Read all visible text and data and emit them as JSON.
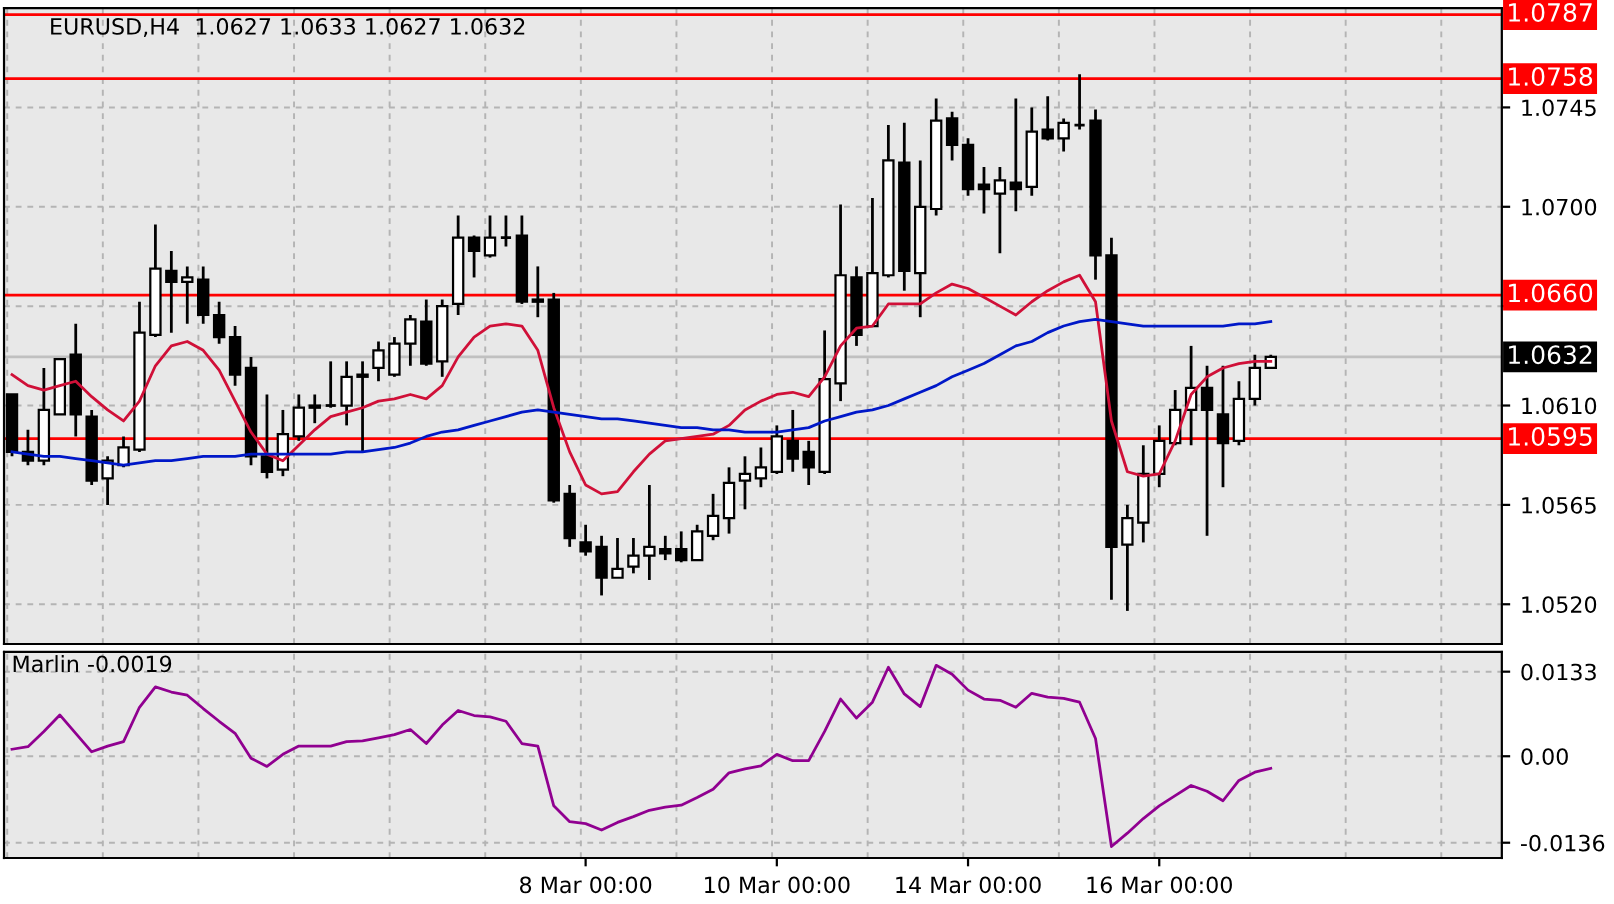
{
  "chart_data": [
    {
      "type": "candlestick",
      "title": "EURUSD,H4  1.0627 1.0633 1.0627 1.0632",
      "categories": [
        null,
        null,
        null,
        null,
        null,
        null,
        null,
        null,
        null,
        null,
        null,
        null,
        null,
        null,
        null,
        null,
        null,
        null,
        null,
        null,
        null,
        null,
        null,
        null,
        null,
        null,
        null,
        null,
        null,
        null,
        null,
        null,
        null,
        null,
        null,
        null,
        null,
        null,
        null,
        null,
        null,
        null,
        null,
        null,
        null,
        null,
        null,
        null,
        null,
        null,
        null,
        null,
        null,
        null,
        null,
        null,
        null,
        null,
        null,
        null,
        null,
        null,
        null,
        null,
        null,
        null,
        null,
        null,
        null,
        null,
        null,
        null,
        null,
        null,
        null,
        null,
        null,
        null,
        null,
        null
      ],
      "ohlc": [
        [
          1.0615,
          1.0615,
          1.0587,
          1.0589
        ],
        [
          1.0589,
          1.0599,
          1.0583,
          1.0585
        ],
        [
          1.0585,
          1.0627,
          1.0583,
          1.0608
        ],
        [
          1.0606,
          1.0631,
          1.0606,
          1.0631
        ],
        [
          1.0633,
          1.0647,
          1.0596,
          1.0606
        ],
        [
          1.0605,
          1.0608,
          1.0574,
          1.0576
        ],
        [
          1.0577,
          1.0587,
          1.0565,
          1.0585
        ],
        [
          1.0583,
          1.0596,
          1.0582,
          1.0591
        ],
        [
          1.059,
          1.0657,
          1.0589,
          1.0643
        ],
        [
          1.0642,
          1.0692,
          1.0641,
          1.0672
        ],
        [
          1.0671,
          1.068,
          1.0643,
          1.0666
        ],
        [
          1.0666,
          1.0673,
          1.0647,
          1.0668
        ],
        [
          1.0667,
          1.0673,
          1.0647,
          1.0651
        ],
        [
          1.0651,
          1.0657,
          1.0638,
          1.0641
        ],
        [
          1.0641,
          1.0646,
          1.0619,
          1.0624
        ],
        [
          1.0627,
          1.0632,
          1.0583,
          1.0587
        ],
        [
          1.0587,
          1.0615,
          1.0577,
          1.058
        ],
        [
          1.0581,
          1.0608,
          1.0578,
          1.0597
        ],
        [
          1.0596,
          1.0615,
          1.0594,
          1.0609
        ],
        [
          1.0609,
          1.0615,
          1.0602,
          1.061
        ],
        [
          1.061,
          1.063,
          1.0609,
          1.061
        ],
        [
          1.061,
          1.063,
          1.0601,
          1.0623
        ],
        [
          1.0624,
          1.063,
          1.0589,
          1.0623
        ],
        [
          1.0627,
          1.0639,
          1.0621,
          1.0635
        ],
        [
          1.0624,
          1.0641,
          1.0623,
          1.0638
        ],
        [
          1.0638,
          1.0651,
          1.0628,
          1.0649
        ],
        [
          1.0648,
          1.0658,
          1.0628,
          1.0629
        ],
        [
          1.063,
          1.0658,
          1.0623,
          1.0655
        ],
        [
          1.0656,
          1.0696,
          1.0651,
          1.0686
        ],
        [
          1.0686,
          1.0687,
          1.0668,
          1.068
        ],
        [
          1.0678,
          1.0696,
          1.0677,
          1.0686
        ],
        [
          1.0686,
          1.0696,
          1.0682,
          1.0686
        ],
        [
          1.0687,
          1.0696,
          1.0656,
          1.0657
        ],
        [
          1.0658,
          1.0673,
          1.065,
          1.0657
        ],
        [
          1.0658,
          1.0661,
          1.0566,
          1.0567
        ],
        [
          1.057,
          1.0574,
          1.0546,
          1.055
        ],
        [
          1.0548,
          1.0556,
          1.0542,
          1.0544
        ],
        [
          1.0546,
          1.0551,
          1.0524,
          1.0532
        ],
        [
          1.0532,
          1.055,
          1.0532,
          1.0536
        ],
        [
          1.0537,
          1.055,
          1.0534,
          1.0542
        ],
        [
          1.0542,
          1.0574,
          1.0531,
          1.0546
        ],
        [
          1.0545,
          1.0551,
          1.054,
          1.0543
        ],
        [
          1.0545,
          1.0553,
          1.0539,
          1.054
        ],
        [
          1.054,
          1.0556,
          1.054,
          1.0553
        ],
        [
          1.0551,
          1.057,
          1.0549,
          1.056
        ],
        [
          1.0559,
          1.0582,
          1.0552,
          1.0575
        ],
        [
          1.0576,
          1.0587,
          1.0563,
          1.0579
        ],
        [
          1.0577,
          1.0591,
          1.0573,
          1.0582
        ],
        [
          1.058,
          1.0601,
          1.0579,
          1.0596
        ],
        [
          1.0594,
          1.0608,
          1.058,
          1.0586
        ],
        [
          1.0589,
          1.0594,
          1.0574,
          1.0582
        ],
        [
          1.058,
          1.0644,
          1.0579,
          1.0622
        ],
        [
          1.062,
          1.0701,
          1.0612,
          1.0669
        ],
        [
          1.0668,
          1.0673,
          1.0637,
          1.0642
        ],
        [
          1.0646,
          1.0704,
          1.0646,
          1.067
        ],
        [
          1.0669,
          1.0737,
          1.0668,
          1.0721
        ],
        [
          1.072,
          1.0738,
          1.0662,
          1.0671
        ],
        [
          1.067,
          1.0721,
          1.065,
          1.07
        ],
        [
          1.0699,
          1.0749,
          1.0696,
          1.0739
        ],
        [
          1.074,
          1.0743,
          1.0721,
          1.0728
        ],
        [
          1.0728,
          1.0731,
          1.0705,
          1.0708
        ],
        [
          1.071,
          1.0718,
          1.0697,
          1.0708
        ],
        [
          1.0706,
          1.0718,
          1.0679,
          1.0712
        ],
        [
          1.0711,
          1.0749,
          1.0698,
          1.0708
        ],
        [
          1.0709,
          1.0745,
          1.0705,
          1.0734
        ],
        [
          1.0735,
          1.075,
          1.073,
          1.0731
        ],
        [
          1.0731,
          1.074,
          1.0725,
          1.0738
        ],
        [
          1.0737,
          1.076,
          1.0735,
          1.0737
        ],
        [
          1.0739,
          1.0744,
          1.0667,
          1.0678
        ],
        [
          1.0678,
          1.0686,
          1.0522,
          1.0546
        ],
        [
          1.0547,
          1.0565,
          1.0517,
          1.0559
        ],
        [
          1.0557,
          1.0592,
          1.0548,
          1.0579
        ],
        [
          1.0579,
          1.0601,
          1.0573,
          1.0594
        ],
        [
          1.0593,
          1.0617,
          1.0592,
          1.0608
        ],
        [
          1.0608,
          1.0637,
          1.0592,
          1.0618
        ],
        [
          1.0618,
          1.0628,
          1.0551,
          1.0608
        ],
        [
          1.0606,
          1.0628,
          1.0573,
          1.0593
        ],
        [
          1.0594,
          1.0621,
          1.0592,
          1.0613
        ],
        [
          1.0613,
          1.0633,
          1.061,
          1.0627
        ],
        [
          1.0627,
          1.0633,
          1.0627,
          1.0632
        ]
      ],
      "series": [
        {
          "type": "line",
          "color": "#d01038",
          "values": [
            1.0624,
            1.0619,
            1.0617,
            1.0619,
            1.0621,
            1.0614,
            1.0608,
            1.0603,
            1.0612,
            1.0628,
            1.0637,
            1.0639,
            1.0635,
            1.0626,
            1.0612,
            1.0598,
            1.0588,
            1.0585,
            1.0592,
            1.0599,
            1.0605,
            1.0607,
            1.0609,
            1.0612,
            1.0613,
            1.0615,
            1.0613,
            1.0619,
            1.0632,
            1.0641,
            1.0646,
            1.0647,
            1.0646,
            1.0635,
            1.0609,
            1.0589,
            1.0574,
            1.057,
            1.0571,
            1.058,
            1.0588,
            1.0594,
            1.0595,
            1.0596,
            1.0597,
            1.0601,
            1.0608,
            1.0612,
            1.0615,
            1.0616,
            1.0614,
            1.0623,
            1.0637,
            1.0645,
            1.0646,
            1.0656,
            1.0656,
            1.0656,
            1.0661,
            1.0665,
            1.0663,
            1.0659,
            1.0655,
            1.0651,
            1.0657,
            1.0662,
            1.0666,
            1.0669,
            1.0657,
            1.0603,
            1.058,
            1.0578,
            1.0579,
            1.0594,
            1.0615,
            1.0623,
            1.0627,
            1.0629,
            1.063,
            1.063
          ]
        },
        {
          "type": "line",
          "color": "#0018c8",
          "values": [
            1.0589,
            1.0588,
            1.0587,
            1.0587,
            1.0586,
            1.0585,
            1.0584,
            1.0583,
            1.0584,
            1.0585,
            1.0585,
            1.0586,
            1.0587,
            1.0587,
            1.0587,
            1.0588,
            1.0588,
            1.0588,
            1.0588,
            1.0588,
            1.0588,
            1.0589,
            1.0589,
            1.059,
            1.0591,
            1.0593,
            1.0596,
            1.0598,
            1.0599,
            1.0601,
            1.0603,
            1.0605,
            1.0607,
            1.0608,
            1.0607,
            1.0606,
            1.0605,
            1.0604,
            1.0604,
            1.0603,
            1.0602,
            1.0601,
            1.06,
            1.06,
            1.0599,
            1.0599,
            1.0598,
            1.0598,
            1.0598,
            1.0599,
            1.06,
            1.0603,
            1.0605,
            1.0607,
            1.0608,
            1.061,
            1.0613,
            1.0616,
            1.0619,
            1.0623,
            1.0626,
            1.0629,
            1.0633,
            1.0637,
            1.0639,
            1.0643,
            1.0646,
            1.0648,
            1.0649,
            1.0648,
            1.0647,
            1.0646,
            1.0646,
            1.0646,
            1.0646,
            1.0646,
            1.0646,
            1.0647,
            1.0647,
            1.0648
          ]
        }
      ],
      "ylim": [
        1.0502,
        1.079
      ],
      "yticks": [
        {
          "value": 1.052,
          "label": "1.0520"
        },
        1.0565,
        {
          "value": 1.061,
          "label": "1.0610"
        },
        {
          "value": 1.0655,
          "label": null
        },
        {
          "value": 1.07,
          "label": "1.0700"
        },
        1.0745
      ],
      "ref_lines": [
        {
          "axis": "y",
          "value": 1.0787,
          "label": "1.0787",
          "color": "#ff0000"
        },
        {
          "axis": "y",
          "value": 1.0758,
          "label": "1.0758",
          "color": "#ff0000"
        },
        {
          "axis": "y",
          "value": 1.066,
          "label": "1.0660",
          "color": "#ff0000"
        },
        {
          "axis": "y",
          "value": 1.0595,
          "label": "1.0595",
          "color": "#ff0000"
        },
        {
          "axis": "y",
          "value": 1.0632,
          "label": "1.0632",
          "color": "#c0c0c0"
        }
      ],
      "grid": true,
      "tick_labels": "y"
    },
    {
      "type": "line",
      "title": "Marlin -0.0019",
      "categories": [
        null,
        null,
        null,
        null,
        null,
        null,
        null,
        null,
        null,
        null,
        null,
        null,
        null,
        null,
        null,
        null,
        null,
        null,
        null,
        null,
        null,
        null,
        null,
        null,
        null,
        null,
        null,
        null,
        null,
        null,
        null,
        null,
        null,
        null,
        null,
        null,
        "8 Mar 00:00",
        null,
        null,
        null,
        null,
        null,
        null,
        null,
        null,
        null,
        null,
        null,
        "10 Mar 00:00",
        null,
        null,
        null,
        null,
        null,
        null,
        null,
        null,
        null,
        null,
        null,
        "14 Mar 00:00",
        null,
        null,
        null,
        null,
        null,
        null,
        null,
        null,
        null,
        null,
        null,
        "16 Mar 00:00",
        null,
        null,
        null,
        null,
        null,
        null,
        null
      ],
      "series": [
        {
          "color": "#900090",
          "values": [
            0.0011,
            0.0015,
            0.0039,
            0.0065,
            0.0036,
            0.0007,
            0.0016,
            0.0023,
            0.0077,
            0.0109,
            0.0101,
            0.0096,
            0.0075,
            0.0055,
            0.0036,
            -0.0003,
            -0.0016,
            0.0003,
            0.0016,
            0.0016,
            0.0016,
            0.0023,
            0.0024,
            0.0029,
            0.0034,
            0.0042,
            0.002,
            0.0049,
            0.0072,
            0.0064,
            0.0062,
            0.0055,
            0.002,
            0.0016,
            -0.0078,
            -0.0103,
            -0.0106,
            -0.0116,
            -0.0104,
            -0.0095,
            -0.0085,
            -0.008,
            -0.0077,
            -0.0065,
            -0.0052,
            -0.0026,
            -0.002,
            -0.0015,
            0.0003,
            -0.0007,
            -0.0007,
            0.0039,
            0.009,
            0.006,
            0.0085,
            0.014,
            0.0098,
            0.0078,
            0.0143,
            0.0129,
            0.0104,
            0.009,
            0.0088,
            0.0077,
            0.0099,
            0.0093,
            0.0091,
            0.0085,
            0.0028,
            -0.0142,
            -0.0121,
            -0.0098,
            -0.0078,
            -0.0062,
            -0.0046,
            -0.0055,
            -0.007,
            -0.0038,
            -0.0025,
            -0.0019
          ]
        }
      ],
      "ylim": [
        -0.016,
        0.0164
      ],
      "yticks": [
        {
          "value": -0.0136,
          "label": "-0.0136"
        },
        {
          "value": 0,
          "label": "0.00"
        },
        0.0133
      ],
      "grid": true
    }
  ]
}
